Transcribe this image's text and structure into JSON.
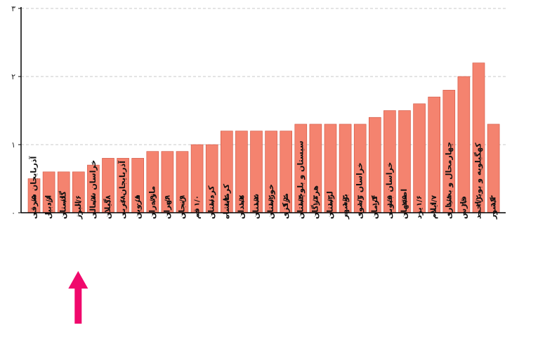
{
  "chart_data": {
    "type": "bar",
    "categories": [
      "آذربایجان شرقی",
      "اردبیل",
      "گلستان",
      "البرز",
      "خراسان شمالی",
      "گیلان",
      "آذربایجان غربی",
      "قزوین",
      "مازندران",
      "تهران",
      "زنجان",
      "قم",
      "کردستان",
      "کرمانشاه",
      "همدان",
      "سمنان",
      "خوزستان",
      "مرکزی",
      "سیستان و بلوچستان",
      "هرمزگان",
      "لرستان",
      "بوشهر",
      "خراسان رضوی",
      "کرمان",
      "خراسان جنوبی",
      "اصفهان",
      "یزد",
      "ایلام",
      "چهارمحال و بختیاری",
      "فارس",
      "کهگیلویه و بویراحمد",
      "کشور"
    ],
    "values": [
      0.5,
      0.6,
      0.6,
      0.6,
      0.7,
      0.8,
      0.8,
      0.8,
      0.9,
      0.9,
      0.9,
      1.0,
      1.0,
      1.2,
      1.2,
      1.2,
      1.2,
      1.2,
      1.3,
      1.3,
      1.3,
      1.3,
      1.3,
      1.4,
      1.5,
      1.5,
      1.6,
      1.7,
      1.8,
      2.0,
      2.2,
      1.3
    ],
    "data_labels": [
      "۰/۵",
      "۰/۶",
      "۰/۶",
      "۰/۶",
      "۰/۷",
      "۰/۸",
      "۰/۸",
      "۰/۸",
      "۰/۹",
      "۰/۹",
      "۰/۹",
      "۱/۰",
      "۱/۰",
      "۱/۲",
      "۱/۲",
      "۱/۲",
      "۱/۲",
      "۱/۲",
      "۱/۳",
      "۱/۳",
      "۱/۳",
      "۱/۳",
      "۱/۳",
      "۱/۴",
      "۱/۵",
      "۱/۵",
      "۱/۶",
      "۱/۷",
      "۱/۸",
      "۲/۰",
      "۲/۲",
      "۱/۳"
    ],
    "ylim": [
      0,
      3
    ],
    "yticks": [
      0,
      1,
      2,
      3
    ],
    "ytick_labels": [
      "۰",
      "۱",
      "۲",
      "۳"
    ],
    "grid": true,
    "title": "",
    "xlabel": "",
    "ylabel": "",
    "colors": {
      "bar": "#f4836f",
      "bar_stroke": "#d0503c",
      "grid": "#c8c8c8",
      "axis": "#000000",
      "arrow": "#f0096c"
    },
    "annotation": {
      "type": "arrow",
      "points_to_category": "البرز"
    }
  }
}
